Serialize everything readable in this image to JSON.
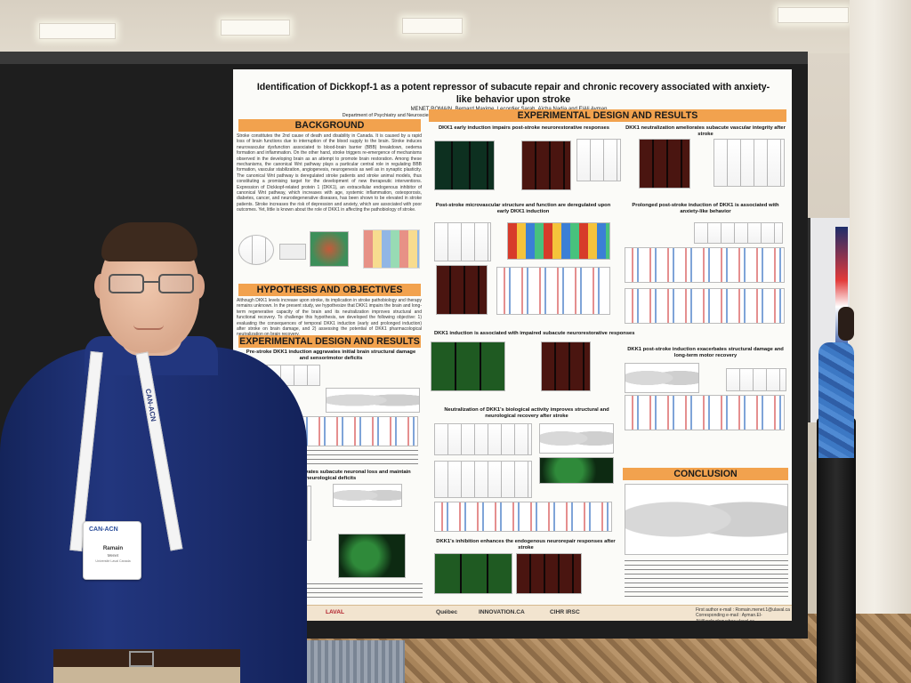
{
  "poster": {
    "title": "Identification of Dickkopf-1 as a potent repressor of subacute repair and chronic recovery associated with anxiety-like behavior upon stroke",
    "authors": "MENET ROMAIN, Bernard Maxime, Lecordier Sarah, Aïcha Nadja and ElAli Ayman",
    "affiliation": "Department of Psychiatry and Neuroscience, Faculty of Medicine, Université Laval, Neuroscience Axis, Research Center of CHU de Québec-Université Laval",
    "sections": {
      "background": "BACKGROUND",
      "hypothesis": "HYPOTHESIS AND OBJECTIVES",
      "exp_left": "EXPERIMENTAL DESIGN AND RESULTS",
      "exp_right": "EXPERIMENTAL DESIGN AND RESULTS",
      "conclusion": "CONCLUSION"
    },
    "subheadings": {
      "dkk1_early": "DKK1 early induction impairs post-stroke neurorestorative responses",
      "neutralization_vascular": "DKK1 neutralization ameliorates subacute vascular integrity after stroke",
      "microvascular": "Post-stroke microvascular structure and function are deregulated upon early DKK1 induction",
      "prolonged": "Prolonged post-stroke induction of DKK1 is associated with anxiety-like behavior",
      "impaired_subacute": "DKK1 induction is associated with impaired subacute neurorestorative responses",
      "pre_stroke": "Pre-stroke DKK1 induction aggravates initial brain structural damage and sensorimotor deficits",
      "exacerbates": "DKK1 post-stroke induction exacerbates structural damage and long-term motor recovery",
      "neutralization_bio": "Neutralization of DKK1's biological activity improves structural and neurological recovery after stroke",
      "subacute_neuronal": "DKK1 induction aggravates subacute neuronal loss and maintain neurological deficits",
      "inhibition": "DKK1's inhibition enhances the endogenous neurorepair responses after stroke"
    },
    "background_text": "Stroke constitutes the 2nd cause of death and disability in Canada. It is caused by a rapid loss of brain functions due to interruption of the blood supply to the brain. Stroke induces neurovascular dysfunction associated to blood-brain barrier (BBB) breakdown, oedema formation and inflammation. On the other hand, stroke triggers re-emergence of mechanisms observed in the developing brain as an attempt to promote brain restoration. Among these mechanisms, the canonical Wnt pathway plays a particular central role in regulating BBB formation, vascular stabilization, angiogenesis, neurogenesis as well as in synaptic plasticity. The canonical Wnt pathway is deregulated stroke patients and stroke animal models, thus constituting a promising target for the development of new therapeutic interventions. Expression of Dickkopf-related protein 1 (DKK1), an extracellular endogenous inhibitor of canonical Wnt pathway, which increases with age, systemic inflammation, osteoporosis, diabetes, cancer, and neurodegenerative diseases, has been shown to be elevated in stroke patients. Stroke increases the risk of depression and anxiety, which are associated with poor outcomes. Yet, little is known about the role of DKK1 in affecting the pathobiology of stroke.",
    "hypothesis_text": "Although DKK1 levels increase upon stroke, its implication in stroke pathobiology and therapy remains unknown. In the present study, we hypothesize that DKK1 impairs the brain and long-term regenerative capacity of the brain and its neutralization improves structural and functional recovery. To challenge this hypothesis, we developed the following objective: 1) evaluating the consequences of temporal DKK1 induction (early and prolonged induction) after stroke on brain damage, and 2) assessing the potential of DKK1 pharmacological neutralization on brain recovery.",
    "footer": {
      "logos": [
        "LAVAL",
        "Québec",
        "INNOVATION.CA",
        "CIHR IRSC"
      ],
      "contact_1": "First author e-mail : Romain.menet.1@ulaval.ca",
      "contact_2": "Corresponding e-mail : Ayman.El-Ali@crchudequebec.ulaval.ca"
    }
  },
  "badge": {
    "org": "CAN-ACN",
    "first_name": "Ramain",
    "last_name": "Menet",
    "affiliation": "Université Laval Canada"
  },
  "lanyard_text": "CAN-ACN"
}
